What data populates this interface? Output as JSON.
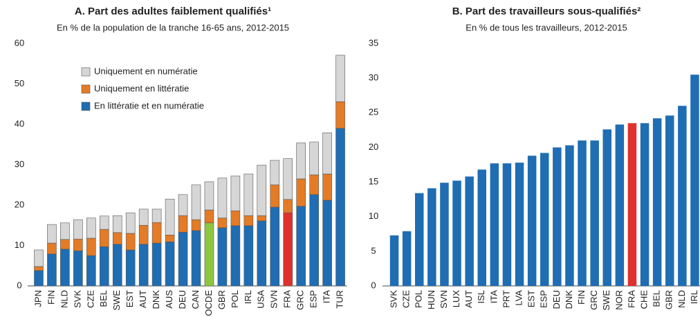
{
  "chart_data": [
    {
      "type": "stacked_bar",
      "title": "A. Part des adultes faiblement qualifiés¹",
      "subtitle": "En % de la population de la tranche 16-65 ans, 2012-2015",
      "categories": [
        "JPN",
        "FIN",
        "NLD",
        "SVK",
        "CZE",
        "BEL",
        "SWE",
        "EST",
        "AUT",
        "DNK",
        "AUS",
        "DEU",
        "CAN",
        "OCDE",
        "GBR",
        "POL",
        "IRL",
        "USA",
        "SVN",
        "FRA",
        "GRC",
        "ESP",
        "ITA",
        "TUR"
      ],
      "series": [
        {
          "name": "En littératie et en numératie",
          "color": "#1f6db3",
          "point_colors": [
            "#1f6db3",
            "#1f6db3",
            "#1f6db3",
            "#1f6db3",
            "#1f6db3",
            "#1f6db3",
            "#1f6db3",
            "#1f6db3",
            "#1f6db3",
            "#1f6db3",
            "#1f6db3",
            "#1f6db3",
            "#1f6db3",
            "#8dc63f",
            "#1f6db3",
            "#1f6db3",
            "#1f6db3",
            "#1f6db3",
            "#1f6db3",
            "#e0312e",
            "#1f6db3",
            "#1f6db3",
            "#1f6db3",
            "#1f6db3"
          ],
          "values": [
            3.8,
            7.9,
            9.1,
            8.7,
            7.5,
            9.7,
            10.3,
            8.9,
            10.3,
            10.6,
            10.9,
            13.3,
            13.7,
            15.6,
            14.4,
            14.9,
            14.9,
            16.1,
            19.5,
            18.1,
            19.7,
            22.6,
            21.2,
            39.0
          ]
        },
        {
          "name": "Uniquement en littératie",
          "color": "#e47b27",
          "values": [
            1.0,
            2.7,
            2.4,
            2.9,
            4.3,
            4.3,
            2.9,
            4.1,
            4.7,
            5.1,
            1.7,
            4.1,
            2.7,
            3.2,
            2.4,
            3.7,
            2.5,
            1.3,
            5.5,
            3.3,
            6.8,
            4.9,
            6.5,
            6.6
          ]
        },
        {
          "name": "Uniquement en numératie",
          "color": "#d6d6d6",
          "values": [
            4.1,
            4.6,
            4.1,
            4.8,
            5.0,
            3.3,
            4.2,
            5.1,
            4.0,
            3.3,
            8.9,
            5.2,
            8.6,
            7.0,
            9.9,
            8.6,
            10.3,
            12.5,
            6.1,
            10.1,
            8.9,
            8.1,
            10.2,
            11.5
          ]
        }
      ],
      "ylim": [
        0,
        60
      ],
      "yticks": [
        0,
        10,
        20,
        30,
        40,
        50,
        60
      ],
      "grid": false,
      "legend": "upper left"
    },
    {
      "type": "bar",
      "title": "B. Part des travailleurs sous-qualifiés²",
      "subtitle": "En % de tous les travailleurs, 2012-2015",
      "categories": [
        "SVK",
        "CZE",
        "POL",
        "HUN",
        "SVN",
        "LUX",
        "AUT",
        "ISL",
        "ITA",
        "PRT",
        "LVA",
        "EST",
        "ESP",
        "DEU",
        "DNK",
        "FIN",
        "GRC",
        "SWE",
        "NOR",
        "FRA",
        "CHE",
        "BEL",
        "GBR",
        "NLD",
        "IRL"
      ],
      "values": [
        7.3,
        7.9,
        13.4,
        14.1,
        14.9,
        15.2,
        15.8,
        16.8,
        17.7,
        17.7,
        17.8,
        18.8,
        19.2,
        20.0,
        20.3,
        21.0,
        21.0,
        22.6,
        23.3,
        23.5,
        23.5,
        24.2,
        24.6,
        26.0,
        30.5
      ],
      "color": "#1f6db3",
      "point_colors": [
        "#1f6db3",
        "#1f6db3",
        "#1f6db3",
        "#1f6db3",
        "#1f6db3",
        "#1f6db3",
        "#1f6db3",
        "#1f6db3",
        "#1f6db3",
        "#1f6db3",
        "#1f6db3",
        "#1f6db3",
        "#1f6db3",
        "#1f6db3",
        "#1f6db3",
        "#1f6db3",
        "#1f6db3",
        "#1f6db3",
        "#1f6db3",
        "#e0312e",
        "#1f6db3",
        "#1f6db3",
        "#1f6db3",
        "#1f6db3",
        "#1f6db3"
      ],
      "ylim": [
        0,
        35
      ],
      "yticks": [
        0,
        5,
        10,
        15,
        20,
        25,
        30,
        35
      ],
      "grid": false
    }
  ]
}
